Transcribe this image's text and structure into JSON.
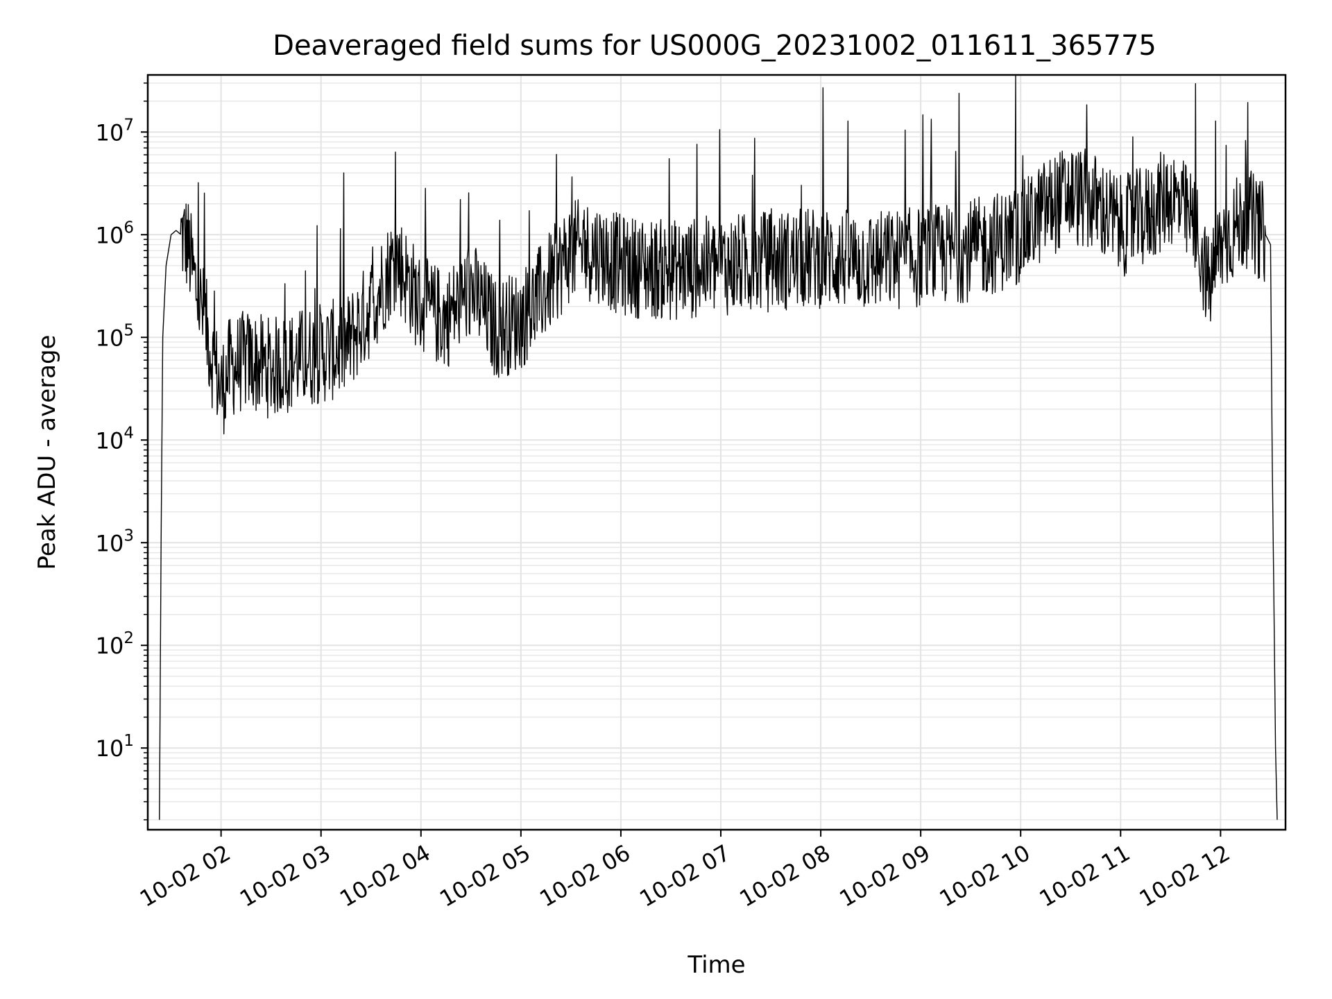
{
  "chart_data": {
    "type": "line",
    "title": "Deaveraged field sums for US000G_20231002_011611_365775",
    "xlabel": "Time",
    "ylabel": "Peak ADU - average",
    "y_scale": "log",
    "ylim": [
      1.6,
      36000000
    ],
    "xlim": [
      "2023-10-02 01:16",
      "2023-10-02 12:39"
    ],
    "grid": true,
    "line_color": "#000000",
    "x_ticks": [
      "10-02 02",
      "10-02 03",
      "10-02 04",
      "10-02 05",
      "10-02 06",
      "10-02 07",
      "10-02 08",
      "10-02 09",
      "10-02 10",
      "10-02 11",
      "10-02 12"
    ],
    "y_ticks": [
      {
        "base": "10",
        "exp": "1"
      },
      {
        "base": "10",
        "exp": "2"
      },
      {
        "base": "10",
        "exp": "3"
      },
      {
        "base": "10",
        "exp": "4"
      },
      {
        "base": "10",
        "exp": "5"
      },
      {
        "base": "10",
        "exp": "6"
      },
      {
        "base": "10",
        "exp": "7"
      }
    ],
    "series": [
      {
        "x": [
          "2023-10-02 01:23",
          "2023-10-02 01:24",
          "2023-10-02 01:25",
          "2023-10-02 01:27",
          "2023-10-02 01:30",
          "2023-10-02 01:33",
          "2023-10-02 01:36",
          "2023-10-02 01:40",
          "2023-10-02 01:45",
          "2023-10-02 01:50",
          "2023-10-02 01:55",
          "2023-10-02 02:00",
          "2023-10-02 02:05",
          "2023-10-02 02:15",
          "2023-10-02 02:30",
          "2023-10-02 02:45",
          "2023-10-02 03:00",
          "2023-10-02 03:15",
          "2023-10-02 03:30",
          "2023-10-02 03:45",
          "2023-10-02 04:00",
          "2023-10-02 04:15",
          "2023-10-02 04:30",
          "2023-10-02 04:45",
          "2023-10-02 05:00",
          "2023-10-02 05:15",
          "2023-10-02 05:30",
          "2023-10-02 05:45",
          "2023-10-02 06:00",
          "2023-10-02 06:30",
          "2023-10-02 07:00",
          "2023-10-02 07:30",
          "2023-10-02 08:00",
          "2023-10-02 08:30",
          "2023-10-02 09:00",
          "2023-10-02 09:30",
          "2023-10-02 10:00",
          "2023-10-02 10:15",
          "2023-10-02 10:30",
          "2023-10-02 10:45",
          "2023-10-02 11:00",
          "2023-10-02 11:15",
          "2023-10-02 11:30",
          "2023-10-02 11:45",
          "2023-10-02 11:53",
          "2023-10-02 12:00",
          "2023-10-02 12:15",
          "2023-10-02 12:27",
          "2023-10-02 12:30",
          "2023-10-02 12:31",
          "2023-10-02 12:32",
          "2023-10-02 12:33",
          "2023-10-02 12:34"
        ],
        "y": [
          2,
          1000,
          100000,
          500000,
          1000000,
          1100000,
          1000000,
          800000,
          300000,
          150000,
          60000,
          30000,
          50000,
          60000,
          50000,
          60000,
          70000,
          80000,
          200000,
          600000,
          200000,
          150000,
          300000,
          120000,
          150000,
          300000,
          700000,
          700000,
          500000,
          450000,
          500000,
          550000,
          600000,
          550000,
          600000,
          700000,
          1000000,
          1800000,
          2500000,
          2000000,
          1200000,
          1500000,
          2500000,
          1200000,
          300000,
          800000,
          1500000,
          1000000,
          800000,
          7000,
          300,
          10,
          2
        ]
      }
    ]
  }
}
